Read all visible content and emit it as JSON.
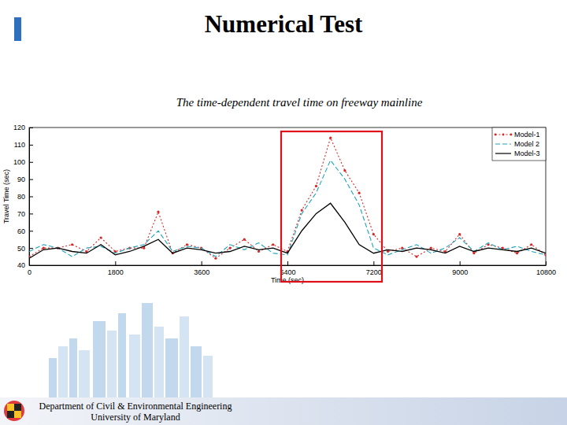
{
  "slide": {
    "title": "Numerical Test",
    "footer": [
      "Department of Civil & Environmental Engineering",
      "University of Maryland"
    ]
  },
  "chart_data": {
    "type": "line",
    "title": "The time-dependent travel time on freeway mainline",
    "x_label": "Time (sec)",
    "y_label": "Travel Time (sec)",
    "x": [
      0,
      300,
      600,
      900,
      1200,
      1500,
      1800,
      2100,
      2400,
      2700,
      3000,
      3300,
      3600,
      3900,
      4200,
      4500,
      4800,
      5100,
      5400,
      5700,
      6000,
      6300,
      6600,
      6900,
      7200,
      7500,
      7800,
      8100,
      8400,
      8700,
      9000,
      9300,
      9600,
      9900,
      10200,
      10500,
      10800
    ],
    "series": [
      {
        "name": "Model-1",
        "color": "#d62728",
        "line_style": "dotted",
        "marker": "point",
        "values": [
          45,
          50,
          50,
          52,
          48,
          56,
          48,
          50,
          50,
          71,
          47,
          52,
          50,
          44,
          50,
          55,
          48,
          52,
          48,
          72,
          86,
          114,
          95,
          82,
          58,
          48,
          50,
          45,
          50,
          48,
          58,
          47,
          52,
          50,
          47,
          52,
          46
        ]
      },
      {
        "name": "Model 2",
        "color": "#1aa3b8",
        "line_style": "dashed",
        "marker": "none",
        "values": [
          48,
          52,
          50,
          45,
          50,
          51,
          47,
          50,
          52,
          60,
          48,
          51,
          50,
          45,
          52,
          49,
          53,
          47,
          46,
          70,
          82,
          101,
          90,
          75,
          50,
          46,
          49,
          52,
          47,
          50,
          56,
          48,
          53,
          49,
          51,
          48,
          46
        ]
      },
      {
        "name": "Model-3",
        "color": "#000000",
        "line_style": "solid",
        "marker": "none",
        "values": [
          44,
          49,
          50,
          48,
          47,
          52,
          46,
          48,
          51,
          55,
          47,
          50,
          49,
          47,
          48,
          51,
          49,
          50,
          47,
          60,
          70,
          76,
          65,
          52,
          47,
          49,
          48,
          50,
          49,
          47,
          51,
          48,
          50,
          49,
          48,
          50,
          47
        ]
      }
    ],
    "xlim": [
      0,
      10800
    ],
    "xticks": [
      0,
      1800,
      3600,
      5400,
      7200,
      9000,
      10800
    ],
    "ylim": [
      40,
      120
    ],
    "yticks": [
      40,
      50,
      60,
      70,
      80,
      90,
      100,
      110,
      120
    ],
    "grid": false,
    "legend": "upper right"
  }
}
